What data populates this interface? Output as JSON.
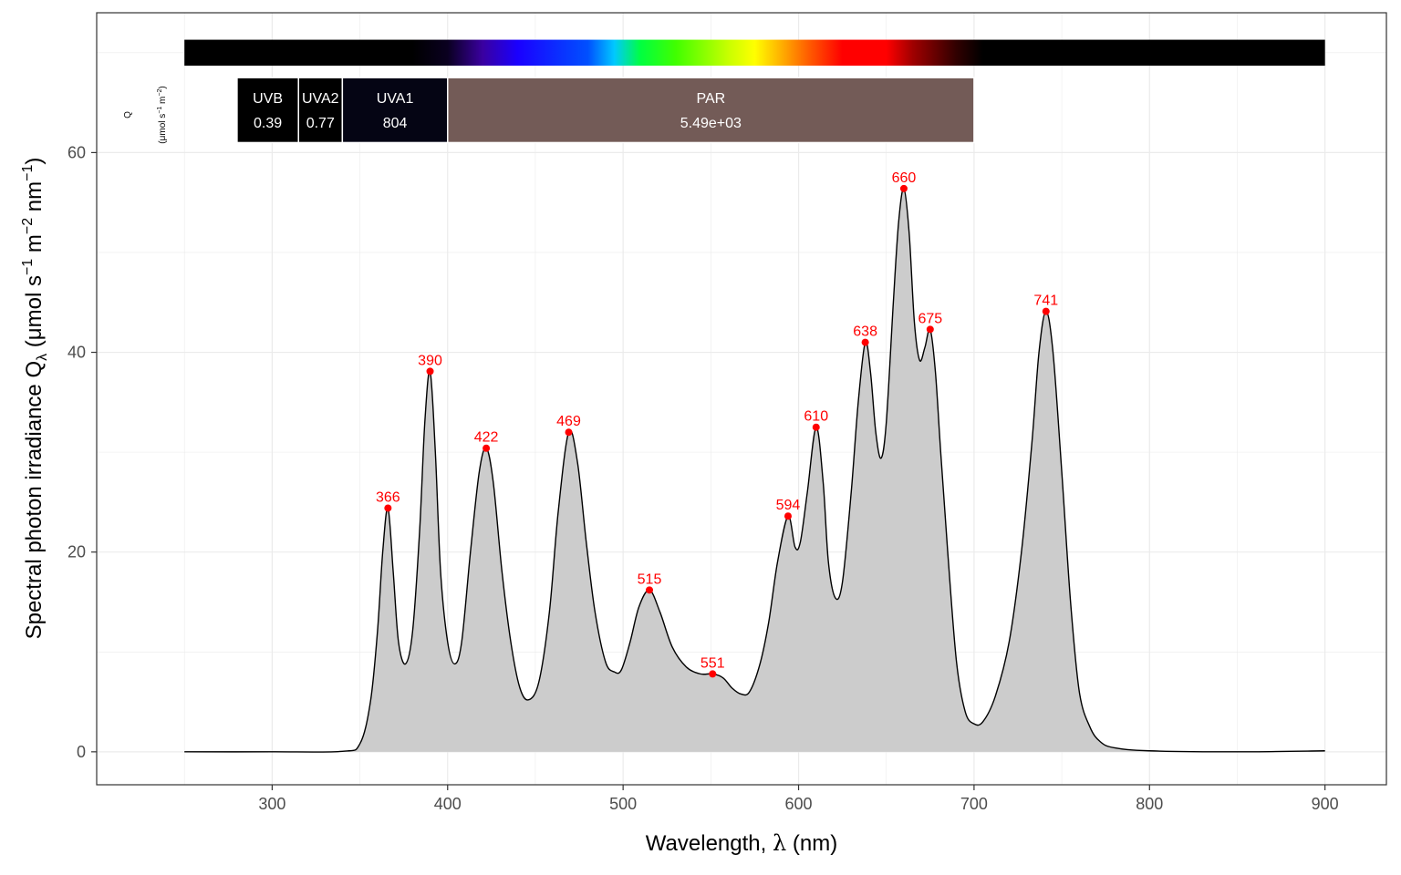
{
  "chart_data": {
    "type": "area",
    "xlabel_main": "Wavelength, ",
    "xlabel_lambda": "λ",
    "xlabel_unit": " (nm)",
    "ylabel_main": "Spectral  photon  irradiance  Q",
    "ylabel_sub": "λ",
    "ylabel_unit_open": "  (μmol s",
    "ylabel_exp1": "−1",
    "ylabel_m": " m",
    "ylabel_exp2": "−2",
    "ylabel_nm": " nm",
    "ylabel_exp3": "−1",
    "ylabel_close": ")",
    "xlim": [
      200,
      935
    ],
    "ylim": [
      -3.3,
      74
    ],
    "x_ticks": [
      300,
      400,
      500,
      600,
      700,
      800,
      900
    ],
    "x_tick_labels": [
      "300",
      "400",
      "500",
      "600",
      "700",
      "800",
      "900"
    ],
    "y_ticks": [
      0,
      20,
      40,
      60
    ],
    "y_tick_labels": [
      "0",
      "20",
      "40",
      "60"
    ],
    "grid": true,
    "fill_color": "#cccccc",
    "line_color": "#000000",
    "peak_color": "#ff0000",
    "spectrum": [
      [
        250,
        0
      ],
      [
        300,
        0
      ],
      [
        340,
        0.05
      ],
      [
        350,
        0.8
      ],
      [
        356,
        5
      ],
      [
        360,
        12
      ],
      [
        363,
        20
      ],
      [
        366,
        24.4
      ],
      [
        369,
        18
      ],
      [
        372,
        11
      ],
      [
        376,
        8.8
      ],
      [
        380,
        12
      ],
      [
        384,
        22
      ],
      [
        387,
        33
      ],
      [
        390,
        38.1
      ],
      [
        393,
        30
      ],
      [
        396,
        18
      ],
      [
        400,
        11
      ],
      [
        404,
        8.8
      ],
      [
        408,
        11
      ],
      [
        413,
        20
      ],
      [
        418,
        28
      ],
      [
        422,
        30.4
      ],
      [
        426,
        27
      ],
      [
        431,
        18
      ],
      [
        436,
        11
      ],
      [
        441,
        6.5
      ],
      [
        446,
        5.2
      ],
      [
        452,
        7
      ],
      [
        458,
        14
      ],
      [
        463,
        24
      ],
      [
        469,
        32
      ],
      [
        474,
        29
      ],
      [
        479,
        21
      ],
      [
        484,
        14
      ],
      [
        490,
        9
      ],
      [
        495,
        8
      ],
      [
        499,
        8.2
      ],
      [
        504,
        11
      ],
      [
        509,
        14.5
      ],
      [
        515,
        16.2
      ],
      [
        521,
        14
      ],
      [
        528,
        10.5
      ],
      [
        536,
        8.5
      ],
      [
        544,
        7.8
      ],
      [
        551,
        7.8
      ],
      [
        557,
        7.4
      ],
      [
        562,
        6.4
      ],
      [
        567,
        5.8
      ],
      [
        572,
        6
      ],
      [
        578,
        8.8
      ],
      [
        583,
        13
      ],
      [
        588,
        19
      ],
      [
        594,
        23.6
      ],
      [
        598,
        20.5
      ],
      [
        601,
        21
      ],
      [
        605,
        26
      ],
      [
        610,
        32.5
      ],
      [
        614,
        27
      ],
      [
        617,
        19
      ],
      [
        621,
        15.4
      ],
      [
        625,
        17
      ],
      [
        630,
        26
      ],
      [
        634,
        35
      ],
      [
        638,
        41
      ],
      [
        641,
        38
      ],
      [
        644,
        32
      ],
      [
        647,
        29.4
      ],
      [
        650,
        33
      ],
      [
        654,
        45
      ],
      [
        657,
        53
      ],
      [
        660,
        56.4
      ],
      [
        663,
        52
      ],
      [
        666,
        43
      ],
      [
        669,
        39.2
      ],
      [
        672,
        40.5
      ],
      [
        675,
        42.3
      ],
      [
        678,
        38
      ],
      [
        681,
        30
      ],
      [
        685,
        20
      ],
      [
        690,
        9
      ],
      [
        695,
        4
      ],
      [
        700,
        2.8
      ],
      [
        705,
        3
      ],
      [
        712,
        5.5
      ],
      [
        720,
        11
      ],
      [
        727,
        20
      ],
      [
        733,
        31
      ],
      [
        737,
        40
      ],
      [
        741,
        44.1
      ],
      [
        745,
        40
      ],
      [
        750,
        28
      ],
      [
        755,
        15
      ],
      [
        760,
        6
      ],
      [
        766,
        2.5
      ],
      [
        772,
        1
      ],
      [
        780,
        0.4
      ],
      [
        800,
        0.1
      ],
      [
        850,
        0
      ],
      [
        900,
        0.1
      ]
    ],
    "peaks": [
      {
        "x": 366,
        "y": 24.4,
        "label": "366"
      },
      {
        "x": 390,
        "y": 38.1,
        "label": "390"
      },
      {
        "x": 422,
        "y": 30.4,
        "label": "422"
      },
      {
        "x": 469,
        "y": 32.0,
        "label": "469"
      },
      {
        "x": 515,
        "y": 16.2,
        "label": "515"
      },
      {
        "x": 551,
        "y": 7.8,
        "label": "551"
      },
      {
        "x": 594,
        "y": 23.6,
        "label": "594"
      },
      {
        "x": 610,
        "y": 32.5,
        "label": "610"
      },
      {
        "x": 638,
        "y": 41.0,
        "label": "638"
      },
      {
        "x": 660,
        "y": 56.4,
        "label": "660"
      },
      {
        "x": 675,
        "y": 42.3,
        "label": "675"
      },
      {
        "x": 741,
        "y": 44.1,
        "label": "741"
      }
    ],
    "wavebands": [
      {
        "name": "UVB",
        "value": "0.39",
        "x0": 280,
        "x1": 315,
        "color": "#000000"
      },
      {
        "name": "UVA2",
        "value": "0.77",
        "x0": 315,
        "x1": 340,
        "color": "#000000"
      },
      {
        "name": "UVA1",
        "value": "804",
        "x0": 340,
        "x1": 400,
        "color": "#050514"
      },
      {
        "name": "PAR",
        "value": "5.49e+03",
        "x0": 400,
        "x1": 700,
        "color": "#735b57"
      }
    ],
    "waveband_yrange": [
      61,
      67.5
    ],
    "color_bar": {
      "x0": 250,
      "x1": 900,
      "y0": 68.7,
      "y1": 71.3,
      "stops": [
        [
          250,
          "#000000"
        ],
        [
          380,
          "#000000"
        ],
        [
          400,
          "#0a0020"
        ],
        [
          420,
          "#3a00a0"
        ],
        [
          440,
          "#1a00ff"
        ],
        [
          480,
          "#0050ff"
        ],
        [
          495,
          "#00c8ff"
        ],
        [
          510,
          "#00ff40"
        ],
        [
          530,
          "#40ff00"
        ],
        [
          560,
          "#c8ff00"
        ],
        [
          575,
          "#ffff00"
        ],
        [
          590,
          "#ffb000"
        ],
        [
          605,
          "#ff6000"
        ],
        [
          625,
          "#ff0000"
        ],
        [
          650,
          "#ff0000"
        ],
        [
          665,
          "#a00000"
        ],
        [
          690,
          "#300000"
        ],
        [
          705,
          "#000000"
        ],
        [
          900,
          "#000000"
        ]
      ]
    },
    "q_label": "Q",
    "q_unit_a": "(μmol s",
    "q_unit_exp1": "−1",
    "q_unit_b": " m",
    "q_unit_exp2": "−2",
    "q_unit_c": ")"
  }
}
